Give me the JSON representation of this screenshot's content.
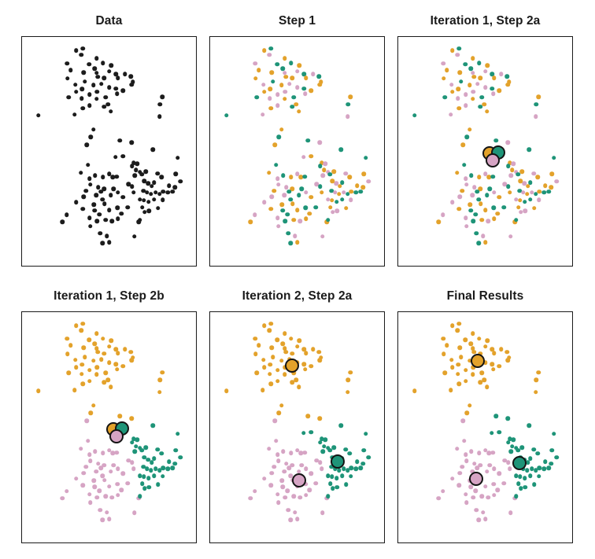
{
  "figure": {
    "background": "#ffffff",
    "panel_border_color": "#1a1a1a",
    "title_color": "#1b1b1b"
  },
  "chart_data": {
    "type": "scatter",
    "description": "K-means clustering algorithm progress with K=3: raw data, random initial assignment, centroid computation, reassignment, and converged final results.",
    "layout": {
      "rows": 2,
      "cols": 3,
      "axes": "hidden",
      "grid": false,
      "legend": "none"
    },
    "cluster_names": [
      "orange",
      "teal",
      "pink"
    ],
    "palette": {
      "black": "#1c1c1c",
      "orange": "#E3A22B",
      "teal": "#1E9478",
      "pink": "#D6A4C4"
    },
    "panels": [
      {
        "title": "Data",
        "mode": "single",
        "color_key": "black",
        "assignment": null,
        "centroid_set": null
      },
      {
        "title": "Step 1",
        "mode": "assignment",
        "color_key": null,
        "assignment": "step1",
        "centroid_set": null
      },
      {
        "title": "Iteration 1, Step 2a",
        "mode": "assignment",
        "color_key": null,
        "assignment": "step1",
        "centroid_set": "initial"
      },
      {
        "title": "Iteration 1, Step 2b",
        "mode": "assignment",
        "color_key": null,
        "assignment": "iter1",
        "centroid_set": "initial"
      },
      {
        "title": "Iteration 2, Step 2a",
        "mode": "assignment",
        "color_key": null,
        "assignment": "iter1",
        "centroid_set": "iteration2"
      },
      {
        "title": "Final Results",
        "mode": "assignment",
        "color_key": null,
        "assignment": "final",
        "centroid_set": "final"
      }
    ],
    "points": [
      [
        0.312,
        0.059
      ],
      [
        0.35,
        0.051
      ],
      [
        0.341,
        0.079
      ],
      [
        0.428,
        0.093
      ],
      [
        0.465,
        0.115
      ],
      [
        0.513,
        0.124
      ],
      [
        0.26,
        0.116
      ],
      [
        0.28,
        0.145
      ],
      [
        0.417,
        0.138
      ],
      [
        0.429,
        0.158
      ],
      [
        0.435,
        0.174
      ],
      [
        0.54,
        0.162
      ],
      [
        0.55,
        0.179
      ],
      [
        0.592,
        0.162
      ],
      [
        0.626,
        0.173
      ],
      [
        0.638,
        0.197
      ],
      [
        0.262,
        0.181
      ],
      [
        0.306,
        0.208
      ],
      [
        0.36,
        0.195
      ],
      [
        0.41,
        0.211
      ],
      [
        0.502,
        0.22
      ],
      [
        0.54,
        0.226
      ],
      [
        0.581,
        0.235
      ],
      [
        0.629,
        0.209
      ],
      [
        0.547,
        0.249
      ],
      [
        0.268,
        0.263
      ],
      [
        0.342,
        0.269
      ],
      [
        0.428,
        0.271
      ],
      [
        0.48,
        0.263
      ],
      [
        0.495,
        0.294
      ],
      [
        0.387,
        0.299
      ],
      [
        0.35,
        0.311
      ],
      [
        0.472,
        0.305
      ],
      [
        0.303,
        0.339
      ],
      [
        0.51,
        0.325
      ],
      [
        0.094,
        0.342
      ],
      [
        0.806,
        0.262
      ],
      [
        0.794,
        0.294
      ],
      [
        0.791,
        0.348
      ],
      [
        0.41,
        0.405
      ],
      [
        0.395,
        0.438
      ],
      [
        0.455,
        0.205
      ],
      [
        0.472,
        0.18
      ],
      [
        0.432,
        0.24
      ],
      [
        0.31,
        0.24
      ],
      [
        0.385,
        0.12
      ],
      [
        0.355,
        0.155
      ],
      [
        0.5,
        0.15
      ],
      [
        0.388,
        0.252
      ],
      [
        0.345,
        0.228
      ],
      [
        0.562,
        0.452
      ],
      [
        0.63,
        0.462
      ],
      [
        0.372,
        0.472
      ],
      [
        0.378,
        0.559
      ],
      [
        0.338,
        0.593
      ],
      [
        0.387,
        0.619
      ],
      [
        0.42,
        0.605
      ],
      [
        0.465,
        0.612
      ],
      [
        0.502,
        0.599
      ],
      [
        0.522,
        0.612
      ],
      [
        0.543,
        0.61
      ],
      [
        0.393,
        0.646
      ],
      [
        0.438,
        0.658
      ],
      [
        0.472,
        0.664
      ],
      [
        0.525,
        0.664
      ],
      [
        0.581,
        0.701
      ],
      [
        0.611,
        0.644
      ],
      [
        0.632,
        0.653
      ],
      [
        0.641,
        0.68
      ],
      [
        0.353,
        0.698
      ],
      [
        0.413,
        0.732
      ],
      [
        0.453,
        0.676
      ],
      [
        0.462,
        0.71
      ],
      [
        0.256,
        0.778
      ],
      [
        0.233,
        0.808
      ],
      [
        0.387,
        0.791
      ],
      [
        0.432,
        0.805
      ],
      [
        0.48,
        0.8
      ],
      [
        0.517,
        0.805
      ],
      [
        0.552,
        0.794
      ],
      [
        0.607,
        0.744
      ],
      [
        0.671,
        0.808
      ],
      [
        0.393,
        0.827
      ],
      [
        0.45,
        0.859
      ],
      [
        0.487,
        0.87
      ],
      [
        0.502,
        0.898
      ],
      [
        0.462,
        0.902
      ],
      [
        0.647,
        0.872
      ],
      [
        0.502,
        0.757
      ],
      [
        0.548,
        0.746
      ],
      [
        0.475,
        0.73
      ],
      [
        0.427,
        0.692
      ],
      [
        0.51,
        0.692
      ],
      [
        0.35,
        0.752
      ],
      [
        0.31,
        0.722
      ],
      [
        0.418,
        0.758
      ],
      [
        0.368,
        0.672
      ],
      [
        0.55,
        0.68
      ],
      [
        0.572,
        0.772
      ],
      [
        0.445,
        0.775
      ],
      [
        0.537,
        0.525
      ],
      [
        0.581,
        0.522
      ],
      [
        0.752,
        0.492
      ],
      [
        0.641,
        0.551
      ],
      [
        0.662,
        0.554
      ],
      [
        0.632,
        0.565
      ],
      [
        0.656,
        0.582
      ],
      [
        0.677,
        0.59
      ],
      [
        0.895,
        0.529
      ],
      [
        0.883,
        0.599
      ],
      [
        0.91,
        0.631
      ],
      [
        0.88,
        0.658
      ],
      [
        0.865,
        0.676
      ],
      [
        0.779,
        0.597
      ],
      [
        0.801,
        0.613
      ],
      [
        0.697,
        0.672
      ],
      [
        0.719,
        0.68
      ],
      [
        0.741,
        0.687
      ],
      [
        0.767,
        0.68
      ],
      [
        0.791,
        0.687
      ],
      [
        0.812,
        0.676
      ],
      [
        0.839,
        0.68
      ],
      [
        0.677,
        0.71
      ],
      [
        0.701,
        0.714
      ],
      [
        0.727,
        0.721
      ],
      [
        0.782,
        0.748
      ],
      [
        0.704,
        0.766
      ],
      [
        0.677,
        0.8
      ],
      [
        0.745,
        0.652
      ],
      [
        0.725,
        0.64
      ],
      [
        0.702,
        0.63
      ],
      [
        0.76,
        0.71
      ],
      [
        0.73,
        0.76
      ],
      [
        0.692,
        0.745
      ],
      [
        0.758,
        0.636
      ],
      [
        0.845,
        0.65
      ],
      [
        0.648,
        0.605
      ],
      [
        0.69,
        0.6
      ],
      [
        0.712,
        0.588
      ],
      [
        0.808,
        0.712
      ]
    ],
    "assignments": {
      "step1": [
        0,
        1,
        2,
        0,
        1,
        0,
        2,
        0,
        1,
        2,
        0,
        1,
        0,
        2,
        1,
        0,
        0,
        2,
        1,
        0,
        2,
        1,
        0,
        0,
        2,
        1,
        2,
        0,
        1,
        0,
        2,
        0,
        1,
        2,
        0,
        1,
        0,
        1,
        2,
        0,
        1,
        2,
        0,
        2,
        0,
        1,
        0,
        2,
        2,
        0,
        1,
        2,
        0,
        1,
        0,
        2,
        1,
        0,
        2,
        0,
        1,
        2,
        2,
        0,
        1,
        0,
        2,
        1,
        0,
        2,
        0,
        1,
        1,
        2,
        0,
        2,
        1,
        0,
        2,
        0,
        1,
        0,
        2,
        1,
        2,
        0,
        1,
        2,
        0,
        1,
        0,
        2,
        1,
        0,
        2,
        1,
        0,
        2,
        0,
        1,
        2,
        0,
        1,
        0,
        2,
        1,
        0,
        2,
        1,
        0,
        2,
        0,
        1,
        2,
        0,
        1,
        2,
        0,
        2,
        1,
        0,
        1,
        2,
        0,
        1,
        0,
        2,
        1,
        0,
        2,
        0,
        1,
        2,
        0,
        1,
        0,
        2,
        1,
        0,
        2
      ],
      "iter1": [
        0,
        0,
        0,
        0,
        0,
        0,
        0,
        0,
        0,
        0,
        0,
        0,
        0,
        0,
        0,
        0,
        0,
        0,
        0,
        0,
        0,
        0,
        0,
        0,
        0,
        0,
        0,
        0,
        0,
        0,
        0,
        0,
        0,
        0,
        0,
        0,
        0,
        0,
        0,
        0,
        0,
        0,
        0,
        0,
        0,
        0,
        0,
        0,
        0,
        0,
        0,
        0,
        2,
        2,
        2,
        2,
        2,
        2,
        2,
        2,
        2,
        2,
        2,
        2,
        2,
        2,
        2,
        2,
        2,
        2,
        2,
        2,
        2,
        2,
        2,
        2,
        2,
        2,
        2,
        2,
        2,
        2,
        2,
        2,
        2,
        2,
        2,
        2,
        2,
        2,
        2,
        2,
        2,
        2,
        2,
        2,
        2,
        2,
        2,
        2,
        1,
        1,
        1,
        1,
        1,
        1,
        1,
        1,
        1,
        1,
        1,
        1,
        1,
        1,
        1,
        1,
        1,
        1,
        1,
        1,
        1,
        1,
        1,
        1,
        1,
        1,
        1,
        1,
        1,
        1,
        1,
        1,
        1,
        1,
        1,
        1,
        1,
        1,
        1,
        1
      ],
      "final": [
        0,
        0,
        0,
        0,
        0,
        0,
        0,
        0,
        0,
        0,
        0,
        0,
        0,
        0,
        0,
        0,
        0,
        0,
        0,
        0,
        0,
        0,
        0,
        0,
        0,
        0,
        0,
        0,
        0,
        0,
        0,
        0,
        0,
        0,
        0,
        0,
        0,
        0,
        0,
        0,
        0,
        0,
        0,
        0,
        0,
        0,
        0,
        0,
        0,
        0,
        1,
        1,
        2,
        2,
        2,
        2,
        2,
        2,
        2,
        2,
        2,
        2,
        2,
        2,
        2,
        2,
        2,
        2,
        2,
        2,
        2,
        2,
        2,
        2,
        2,
        2,
        2,
        2,
        2,
        2,
        2,
        2,
        2,
        2,
        2,
        2,
        2,
        2,
        2,
        2,
        2,
        2,
        2,
        2,
        2,
        2,
        2,
        2,
        2,
        2,
        1,
        1,
        1,
        1,
        1,
        1,
        1,
        1,
        1,
        1,
        1,
        1,
        1,
        1,
        1,
        1,
        1,
        1,
        1,
        1,
        1,
        1,
        1,
        1,
        1,
        1,
        1,
        1,
        1,
        1,
        1,
        1,
        1,
        1,
        1,
        1,
        1,
        1,
        1,
        1
      ]
    },
    "centroid_sets": {
      "initial": [
        {
          "cluster": "orange",
          "x": 0.525,
          "y": 0.509
        },
        {
          "cluster": "teal",
          "x": 0.574,
          "y": 0.505
        },
        {
          "cluster": "pink",
          "x": 0.542,
          "y": 0.539
        }
      ],
      "iteration2": [
        {
          "cluster": "orange",
          "x": 0.471,
          "y": 0.231
        },
        {
          "cluster": "teal",
          "x": 0.735,
          "y": 0.647
        },
        {
          "cluster": "pink",
          "x": 0.51,
          "y": 0.729
        }
      ],
      "final": [
        {
          "cluster": "orange",
          "x": 0.457,
          "y": 0.213
        },
        {
          "cluster": "teal",
          "x": 0.695,
          "y": 0.655
        },
        {
          "cluster": "pink",
          "x": 0.448,
          "y": 0.725
        }
      ]
    }
  }
}
